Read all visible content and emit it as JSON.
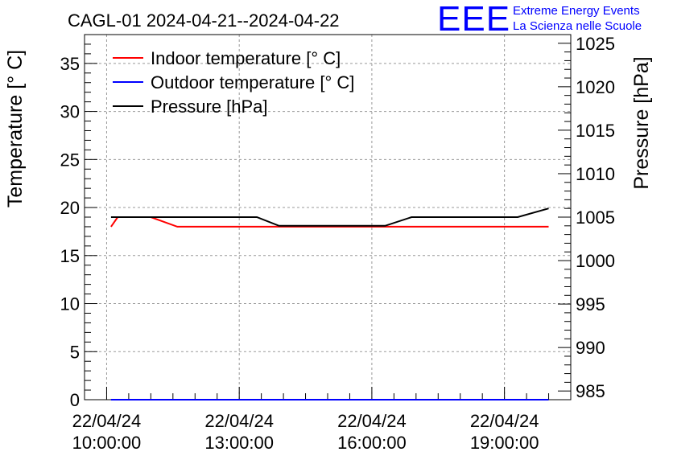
{
  "chart_data": {
    "type": "line",
    "title": "CAGL-01 2024-04-21--2024-04-22",
    "ylabel": "Temperature [° C]",
    "y2label": "Pressure [hPa]",
    "xlabel": "",
    "ylim": [
      0,
      38
    ],
    "y2lim": [
      984,
      1026
    ],
    "xlim_hours": [
      9.5,
      20.5
    ],
    "x_ticks": [
      {
        "hour": 10,
        "date": "22/04/24",
        "time": "10:00:00"
      },
      {
        "hour": 13,
        "date": "22/04/24",
        "time": "13:00:00"
      },
      {
        "hour": 16,
        "date": "22/04/24",
        "time": "16:00:00"
      },
      {
        "hour": 19,
        "date": "22/04/24",
        "time": "19:00:00"
      }
    ],
    "y_ticks": [
      0,
      5,
      10,
      15,
      20,
      25,
      30,
      35
    ],
    "y2_ticks": [
      985,
      990,
      995,
      1000,
      1005,
      1010,
      1015,
      1020,
      1025
    ],
    "grid": true,
    "legend_position": "top-left",
    "series": [
      {
        "name": "Indoor temperature [° C]",
        "axis": "left",
        "color": "#ff0000",
        "x_hours": [
          10.1,
          10.25,
          10.6,
          11.0,
          11.6,
          20.0
        ],
        "values": [
          18,
          19,
          19,
          19,
          18,
          18
        ]
      },
      {
        "name": "Outdoor temperature [° C]",
        "axis": "left",
        "color": "#0000ff",
        "x_hours": [
          10.1,
          20.0
        ],
        "values": [
          0,
          0
        ]
      },
      {
        "name": "Pressure [hPa]",
        "axis": "right",
        "color": "#000000",
        "x_hours": [
          10.1,
          10.3,
          13.4,
          13.9,
          16.3,
          16.9,
          19.3,
          20.0
        ],
        "values": [
          1005,
          1005,
          1005,
          1004,
          1004,
          1005,
          1005,
          1006
        ]
      }
    ]
  },
  "logo": {
    "letters": "EEE",
    "line1": "Extreme Energy Events",
    "line2": "La Scienza nelle Scuole"
  }
}
